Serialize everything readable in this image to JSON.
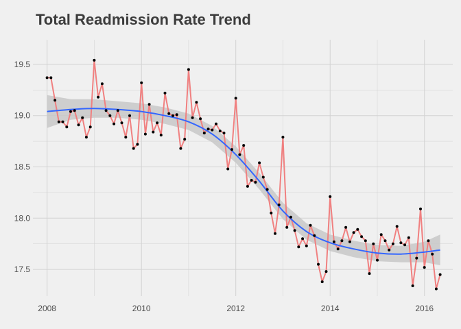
{
  "chart_data": {
    "type": "line",
    "title": "Total Readmission Rate Trend",
    "xlabel": "",
    "ylabel": "",
    "xlim": [
      2007.7,
      2016.6
    ],
    "ylim": [
      17.24,
      19.74
    ],
    "x_ticks": [
      2008,
      2010,
      2012,
      2014,
      2016
    ],
    "y_ticks": [
      17.5,
      18.0,
      18.5,
      19.0,
      19.5
    ],
    "x_tick_labels": [
      "2008",
      "2010",
      "2012",
      "2014",
      "2016"
    ],
    "y_tick_labels": [
      "17.5",
      "18.0",
      "18.5",
      "19.0",
      "19.5"
    ],
    "grid": true,
    "legend": "none",
    "colors": {
      "background": "#f0f0f0",
      "grid": "#d2d2d2",
      "line": "#f08080",
      "points": "#000000",
      "smooth": "#3366ff",
      "band": "#c8c8c8"
    },
    "series": [
      {
        "type": "line+points",
        "x": [
          2008.0,
          2008.083,
          2008.167,
          2008.25,
          2008.333,
          2008.417,
          2008.5,
          2008.583,
          2008.667,
          2008.75,
          2008.833,
          2008.917,
          2009.0,
          2009.083,
          2009.167,
          2009.25,
          2009.333,
          2009.417,
          2009.5,
          2009.583,
          2009.667,
          2009.75,
          2009.833,
          2009.917,
          2010.0,
          2010.083,
          2010.167,
          2010.25,
          2010.333,
          2010.417,
          2010.5,
          2010.583,
          2010.667,
          2010.75,
          2010.833,
          2010.917,
          2011.0,
          2011.083,
          2011.167,
          2011.25,
          2011.333,
          2011.417,
          2011.5,
          2011.583,
          2011.667,
          2011.75,
          2011.833,
          2011.917,
          2012.0,
          2012.083,
          2012.167,
          2012.25,
          2012.333,
          2012.417,
          2012.5,
          2012.583,
          2012.667,
          2012.75,
          2012.833,
          2012.917,
          2013.0,
          2013.083,
          2013.167,
          2013.25,
          2013.333,
          2013.417,
          2013.5,
          2013.583,
          2013.667,
          2013.75,
          2013.833,
          2013.917,
          2014.0,
          2014.083,
          2014.167,
          2014.25,
          2014.333,
          2014.417,
          2014.5,
          2014.583,
          2014.667,
          2014.75,
          2014.833,
          2014.917,
          2015.0,
          2015.083,
          2015.167,
          2015.25,
          2015.333,
          2015.417,
          2015.5,
          2015.583,
          2015.667,
          2015.75,
          2015.833,
          2015.917,
          2016.0,
          2016.083,
          2016.167,
          2016.25,
          2016.333
        ],
        "y": [
          19.37,
          19.37,
          19.15,
          18.94,
          18.94,
          18.89,
          19.04,
          19.05,
          18.91,
          18.98,
          18.79,
          18.89,
          19.54,
          19.18,
          19.31,
          19.05,
          19.0,
          18.92,
          19.05,
          18.93,
          18.79,
          19.0,
          18.68,
          18.72,
          19.32,
          18.82,
          19.11,
          18.84,
          18.93,
          18.81,
          19.22,
          19.02,
          19.0,
          19.01,
          18.68,
          18.77,
          19.45,
          18.98,
          19.13,
          18.97,
          18.83,
          18.87,
          18.86,
          18.92,
          18.85,
          18.83,
          18.48,
          18.67,
          19.17,
          18.62,
          18.71,
          18.31,
          18.37,
          18.35,
          18.54,
          18.4,
          18.28,
          18.05,
          17.85,
          18.13,
          18.79,
          17.91,
          18.01,
          17.88,
          17.72,
          17.8,
          17.73,
          17.93,
          17.83,
          17.55,
          17.38,
          17.48,
          18.21,
          17.77,
          17.7,
          17.78,
          17.91,
          17.77,
          17.86,
          17.89,
          17.82,
          17.78,
          17.46,
          17.75,
          17.59,
          17.84,
          17.78,
          17.69,
          17.75,
          17.92,
          17.76,
          17.74,
          17.81,
          17.34,
          17.61,
          18.09,
          17.52,
          17.78,
          17.65,
          17.31,
          17.45
        ]
      },
      {
        "type": "smooth",
        "x": [
          2008.0,
          2008.5,
          2009.0,
          2009.5,
          2010.0,
          2010.5,
          2011.0,
          2011.5,
          2012.0,
          2012.5,
          2013.0,
          2013.5,
          2014.0,
          2014.5,
          2015.0,
          2015.5,
          2016.0,
          2016.333
        ],
        "y": [
          19.04,
          19.06,
          19.07,
          19.06,
          19.04,
          19.0,
          18.94,
          18.82,
          18.62,
          18.36,
          18.07,
          17.87,
          17.76,
          17.7,
          17.66,
          17.65,
          17.67,
          17.69
        ],
        "y_lower": [
          18.88,
          18.96,
          18.98,
          18.98,
          18.96,
          18.92,
          18.86,
          18.74,
          18.54,
          18.28,
          17.99,
          17.79,
          17.68,
          17.62,
          17.58,
          17.57,
          17.57,
          17.54
        ],
        "y_upper": [
          19.2,
          19.16,
          19.16,
          19.14,
          19.12,
          19.08,
          19.02,
          18.9,
          18.7,
          18.44,
          18.15,
          17.95,
          17.84,
          17.78,
          17.74,
          17.73,
          17.77,
          17.84
        ]
      }
    ]
  }
}
